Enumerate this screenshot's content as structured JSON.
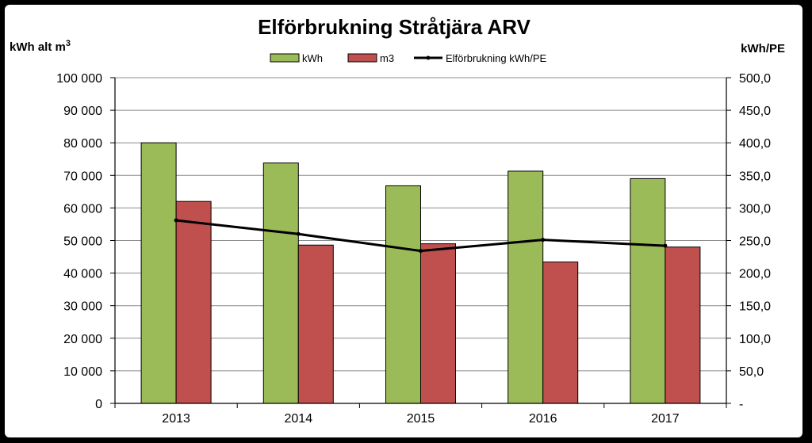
{
  "chart_data": {
    "type": "bar",
    "title": "Elförbrukning Stråtjära ARV",
    "ylabel_left": "kWh alt m",
    "ylabel_left_sup": "3",
    "ylabel_right": "kWh/PE",
    "categories": [
      "2013",
      "2014",
      "2015",
      "2016",
      "2017"
    ],
    "series": [
      {
        "name": "kWh",
        "type": "bar",
        "axis": "left",
        "color": "#9bbb59",
        "values": [
          80000,
          73800,
          66800,
          71300,
          69000
        ]
      },
      {
        "name": "m3",
        "type": "bar",
        "axis": "left",
        "color": "#c0504d",
        "values": [
          62000,
          48600,
          49000,
          43400,
          48000
        ]
      },
      {
        "name": "Elförbrukning kWh/PE",
        "type": "line",
        "axis": "right",
        "color": "#000000",
        "values": [
          281,
          260,
          234,
          251,
          242
        ]
      }
    ],
    "ylim_left": [
      0,
      100000
    ],
    "ylim_right": [
      0,
      500
    ],
    "left_ticks": [
      "0",
      "10 000",
      "20 000",
      "30 000",
      "40 000",
      "50 000",
      "60 000",
      "70 000",
      "80 000",
      "90 000",
      "100 000"
    ],
    "right_ticks": [
      "-",
      "50,0",
      "100,0",
      "150,0",
      "200,0",
      "250,0",
      "300,0",
      "350,0",
      "400,0",
      "450,0",
      "500,0"
    ],
    "grid": true,
    "legend_position": "top"
  }
}
